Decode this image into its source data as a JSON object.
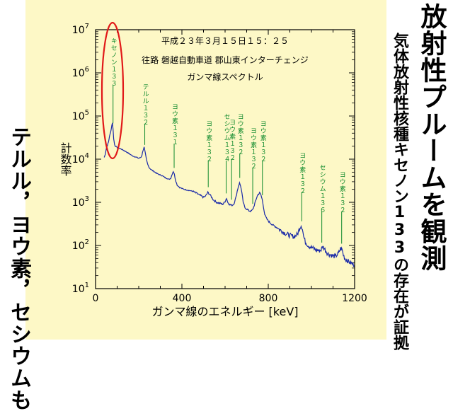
{
  "left_caption": "テルル，ヨウ素，セシウムも",
  "title_main": "放射性プルームを観測",
  "title_sub": "気体放射性核種キセノン133の存在が証拠",
  "colors": {
    "panel": "#fdf8c6",
    "spectrum": "#1a2aa8",
    "peak_label": "#0f8a2c",
    "highlight": "#e11919"
  },
  "chart_data": {
    "type": "line",
    "header_lines": [
      "平成２３年３月１５日１５：２５",
      "往路 磐越自動車道 郡山東インターチェンジ",
      "ガンマ線スペクトル"
    ],
    "xlabel": "ガンマ線のエネルギー [keV]",
    "ylabel": "計数率",
    "xlim": [
      0,
      1200
    ],
    "ylim": [
      10,
      10000000
    ],
    "y_scale": "log",
    "x_ticks": [
      "0",
      "400",
      "800",
      "1200"
    ],
    "y_ticks": [
      {
        "base": "10",
        "exp": "1",
        "value": 10
      },
      {
        "base": "10",
        "exp": "2",
        "value": 100
      },
      {
        "base": "10",
        "exp": "3",
        "value": 1000
      },
      {
        "base": "10",
        "exp": "4",
        "value": 10000
      },
      {
        "base": "10",
        "exp": "5",
        "value": 100000
      },
      {
        "base": "10",
        "exp": "6",
        "value": 1000000
      },
      {
        "base": "10",
        "exp": "7",
        "value": 10000000
      }
    ],
    "series": [
      {
        "x": [
          40,
          45,
          50,
          55,
          60,
          65,
          70,
          75,
          78,
          81,
          84,
          88,
          92,
          98,
          104,
          110,
          120,
          130,
          140,
          150,
          160,
          170,
          180,
          190,
          200,
          210,
          215,
          220,
          225,
          230,
          236,
          242,
          250,
          260,
          270,
          280,
          290,
          300,
          310,
          320,
          330,
          340,
          348,
          355,
          360,
          365,
          370,
          378,
          390,
          410,
          430,
          450,
          470,
          490,
          500,
          510,
          520,
          530,
          545,
          560,
          575,
          590,
          600,
          607,
          612,
          620,
          630,
          640,
          650,
          656,
          662,
          667,
          672,
          678,
          684,
          692,
          700,
          710,
          720,
          728,
          735,
          742,
          750,
          760,
          766,
          772,
          778,
          784,
          792,
          800,
          810,
          820,
          840,
          860,
          880,
          900,
          920,
          935,
          945,
          952,
          958,
          964,
          972,
          985,
          1000,
          1020,
          1035,
          1045,
          1052,
          1060,
          1075,
          1090,
          1110,
          1125,
          1135,
          1142,
          1148,
          1155,
          1165,
          1180,
          1200
        ],
        "y": [
          11000,
          13000,
          18000,
          21000,
          25000,
          35000,
          42000,
          60000,
          70000,
          50000,
          30000,
          22000,
          20000,
          19000,
          18000,
          18000,
          17000,
          16000,
          15000,
          14000,
          13000,
          12000,
          11500,
          11000,
          10500,
          11000,
          12500,
          16000,
          19000,
          14000,
          9500,
          7500,
          6200,
          5600,
          5200,
          4800,
          4500,
          4300,
          4100,
          3800,
          3600,
          3400,
          3600,
          4500,
          5200,
          4500,
          3300,
          2500,
          2200,
          2000,
          1900,
          1800,
          1600,
          1400,
          1300,
          1400,
          1700,
          1500,
          1150,
          1000,
          950,
          900,
          1050,
          1250,
          1000,
          900,
          850,
          900,
          1300,
          1800,
          2400,
          2800,
          2400,
          1600,
          1000,
          750,
          700,
          640,
          620,
          680,
          850,
          1100,
          1450,
          1650,
          1500,
          1150,
          780,
          520,
          420,
          370,
          330,
          300,
          260,
          220,
          190,
          170,
          160,
          180,
          250,
          290,
          250,
          160,
          120,
          100,
          90,
          80,
          75,
          80,
          95,
          85,
          65,
          60,
          55,
          65,
          85,
          80,
          60,
          50,
          45,
          40,
          35
        ]
      }
    ],
    "peak_labels": [
      {
        "text": "キセノン１３３",
        "x": 81
      },
      {
        "text": "テルル１３２",
        "x": 228
      },
      {
        "text": "ヨウ素１３１",
        "x": 364
      },
      {
        "text": "ヨウ素１３２",
        "x": 522
      },
      {
        "text": "セシウム１３４",
        "x": 605
      },
      {
        "text": "ヨウ素１３２",
        "x": 630
      },
      {
        "text": "ヨウ素１３２",
        "x": 668
      },
      {
        "text": "ヨウ素１３２",
        "x": 728
      },
      {
        "text": "ヨウ素１３２",
        "x": 773
      },
      {
        "text": "ヨウ素１３２",
        "x": 955
      },
      {
        "text": "セシウム１３６",
        "x": 1048
      },
      {
        "text": "ヨウ素１３２",
        "x": 1140
      }
    ]
  }
}
